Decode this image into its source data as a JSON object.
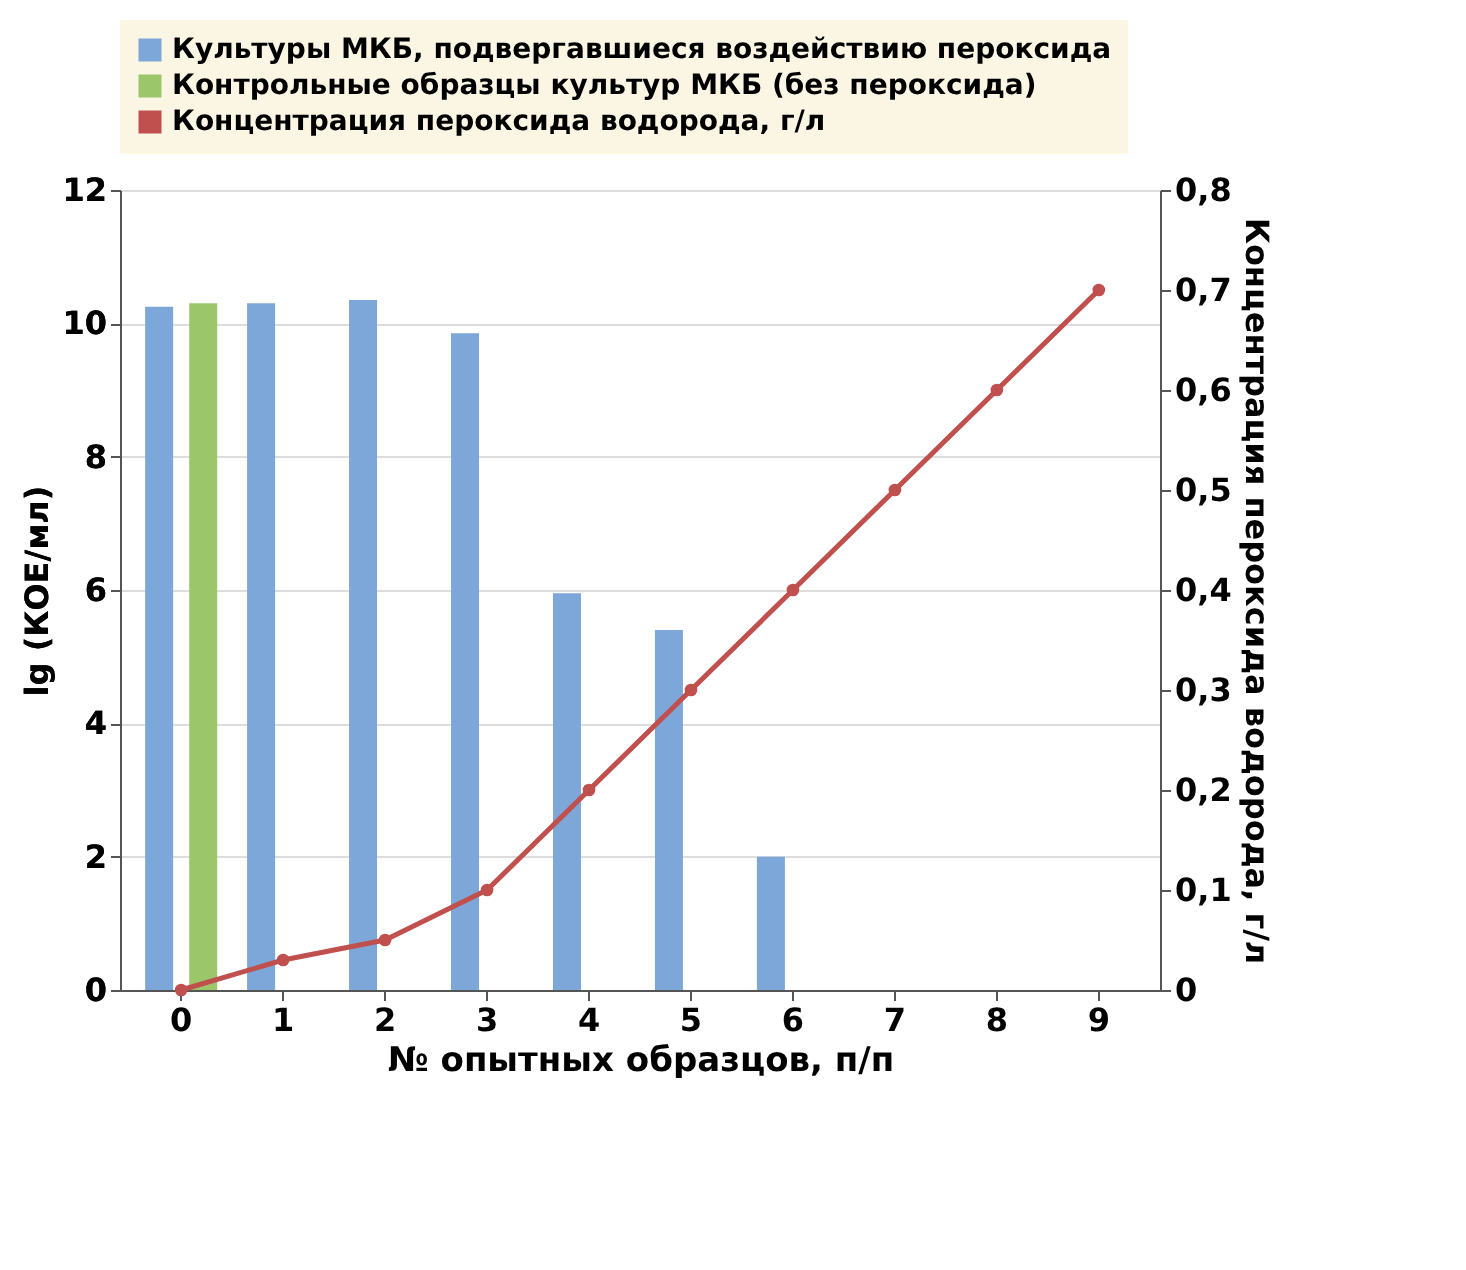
{
  "chart_data": {
    "type": "bar",
    "xlabel": "№  опытных образцов, п/п",
    "ylabel": "lg (КОЕ/мл)",
    "y2label": "Концентрация пероксида водорода, г/л",
    "categories": [
      "0",
      "1",
      "2",
      "3",
      "4",
      "5",
      "6",
      "7",
      "8",
      "9"
    ],
    "series": [
      {
        "name": "Культуры МКБ, подвергавшиеся воздействию пероксида",
        "color": "#7da7d9",
        "values": [
          10.25,
          10.3,
          10.35,
          9.85,
          5.95,
          5.4,
          2.0,
          null,
          null,
          null
        ]
      },
      {
        "name": "Контрольные образцы культур МКБ (без пероксида)",
        "color": "#9bc66a",
        "values": [
          10.3,
          null,
          null,
          null,
          null,
          null,
          null,
          null,
          null,
          null
        ]
      },
      {
        "name": "Концентрация пероксида водорода, г/л",
        "type": "line",
        "axis": "y2",
        "color": "#c0504d",
        "marker": "circle",
        "line_style": "solid",
        "values": [
          0,
          0.03,
          0.05,
          0.1,
          0.2,
          0.3,
          0.4,
          0.5,
          0.6,
          0.7
        ]
      }
    ],
    "ylim": [
      0,
      12
    ],
    "yticks": [
      0,
      2,
      4,
      6,
      8,
      10,
      12
    ],
    "y2lim": [
      0,
      0.8
    ],
    "y2ticks": [
      {
        "value": 0,
        "label": "0"
      },
      {
        "value": 0.1,
        "label": "0,1"
      },
      {
        "value": 0.2,
        "label": "0,2"
      },
      {
        "value": 0.3,
        "label": "0,3"
      },
      {
        "value": 0.4,
        "label": "0,4"
      },
      {
        "value": 0.5,
        "label": "0,5"
      },
      {
        "value": 0.6,
        "label": "0,6"
      },
      {
        "value": 0.7,
        "label": "0,7"
      },
      {
        "value": 0.8,
        "label": "0,8"
      }
    ],
    "grid": "y",
    "legend": "top"
  }
}
